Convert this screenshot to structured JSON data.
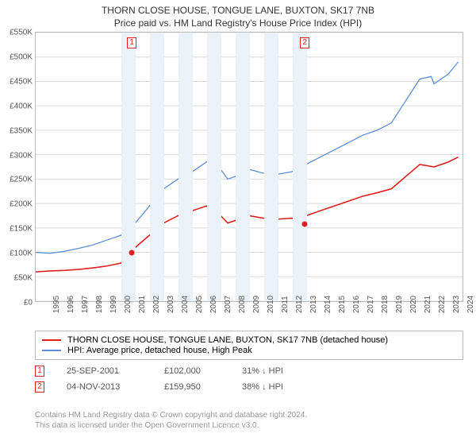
{
  "title": "THORN CLOSE HOUSE, TONGUE LANE, BUXTON, SK17 7NB",
  "subtitle": "Price paid vs. HM Land Registry's House Price Index (HPI)",
  "chart": {
    "type": "line",
    "background_color": "#ffffff",
    "border_color": "#bbbbbb",
    "grid_color": "#dddddd",
    "band_color": "#ebf1f8",
    "y": {
      "min": 0,
      "max": 550000,
      "step": 50000,
      "labels": [
        "£0",
        "£50K",
        "£100K",
        "£150K",
        "£200K",
        "£250K",
        "£300K",
        "£350K",
        "£400K",
        "£450K",
        "£500K",
        "£550K"
      ]
    },
    "x": {
      "min": 1995,
      "max": 2025,
      "labels": [
        "1995",
        "1996",
        "1997",
        "1998",
        "1999",
        "2000",
        "2001",
        "2002",
        "2003",
        "2004",
        "2005",
        "2006",
        "2007",
        "2008",
        "2009",
        "2010",
        "2011",
        "2012",
        "2013",
        "2014",
        "2015",
        "2016",
        "2017",
        "2018",
        "2019",
        "2020",
        "2021",
        "2022",
        "2023",
        "2024"
      ]
    },
    "series": [
      {
        "name": "property",
        "color": "#e02020",
        "width": 1.6,
        "points": [
          [
            1995,
            60000
          ],
          [
            1996,
            62000
          ],
          [
            1997,
            63000
          ],
          [
            1998,
            65000
          ],
          [
            1999,
            68000
          ],
          [
            2000,
            72000
          ],
          [
            2001,
            78000
          ],
          [
            2001.7,
            102000
          ],
          [
            2002,
            110000
          ],
          [
            2003,
            135000
          ],
          [
            2004,
            160000
          ],
          [
            2005,
            175000
          ],
          [
            2006,
            185000
          ],
          [
            2007,
            195000
          ],
          [
            2008,
            175000
          ],
          [
            2008.5,
            160000
          ],
          [
            2009,
            165000
          ],
          [
            2010,
            175000
          ],
          [
            2011,
            170000
          ],
          [
            2012,
            168000
          ],
          [
            2013,
            170000
          ],
          [
            2013.85,
            159950
          ],
          [
            2014,
            175000
          ],
          [
            2015,
            185000
          ],
          [
            2016,
            195000
          ],
          [
            2017,
            205000
          ],
          [
            2018,
            215000
          ],
          [
            2019,
            222000
          ],
          [
            2020,
            230000
          ],
          [
            2021,
            255000
          ],
          [
            2022,
            280000
          ],
          [
            2023,
            275000
          ],
          [
            2024,
            285000
          ],
          [
            2024.7,
            295000
          ]
        ]
      },
      {
        "name": "hpi",
        "color": "#5b8fd6",
        "width": 1.3,
        "points": [
          [
            1995,
            100000
          ],
          [
            1996,
            98000
          ],
          [
            1997,
            102000
          ],
          [
            1998,
            108000
          ],
          [
            1999,
            115000
          ],
          [
            2000,
            125000
          ],
          [
            2001,
            135000
          ],
          [
            2002,
            160000
          ],
          [
            2003,
            195000
          ],
          [
            2004,
            230000
          ],
          [
            2005,
            250000
          ],
          [
            2006,
            265000
          ],
          [
            2007,
            285000
          ],
          [
            2007.6,
            295000
          ],
          [
            2008,
            270000
          ],
          [
            2008.5,
            250000
          ],
          [
            2009,
            255000
          ],
          [
            2010,
            270000
          ],
          [
            2011,
            262000
          ],
          [
            2012,
            260000
          ],
          [
            2013,
            265000
          ],
          [
            2014,
            280000
          ],
          [
            2015,
            295000
          ],
          [
            2016,
            310000
          ],
          [
            2017,
            325000
          ],
          [
            2018,
            340000
          ],
          [
            2019,
            350000
          ],
          [
            2020,
            365000
          ],
          [
            2021,
            410000
          ],
          [
            2022,
            455000
          ],
          [
            2022.8,
            460000
          ],
          [
            2023,
            445000
          ],
          [
            2024,
            465000
          ],
          [
            2024.7,
            490000
          ]
        ]
      }
    ],
    "markers": [
      {
        "idx": "1",
        "x": 2001.73,
        "y": 102000
      },
      {
        "idx": "2",
        "x": 2013.85,
        "y": 159950
      }
    ],
    "bands": [
      [
        2001,
        2002
      ],
      [
        2003,
        2004
      ],
      [
        2005,
        2006
      ],
      [
        2007,
        2008
      ],
      [
        2009,
        2010
      ],
      [
        2011,
        2012
      ],
      [
        2013,
        2014
      ]
    ]
  },
  "legend": {
    "rows": [
      {
        "color": "#e02020",
        "label": "THORN CLOSE HOUSE, TONGUE LANE, BUXTON, SK17 7NB (detached house)"
      },
      {
        "color": "#5b8fd6",
        "label": "HPI: Average price, detached house, High Peak"
      }
    ]
  },
  "transactions": [
    {
      "idx": "1",
      "date": "25-SEP-2001",
      "price": "£102,000",
      "pct": "31% ↓ HPI"
    },
    {
      "idx": "2",
      "date": "04-NOV-2013",
      "price": "£159,950",
      "pct": "38% ↓ HPI"
    }
  ],
  "footer": {
    "line1": "Contains HM Land Registry data © Crown copyright and database right 2024.",
    "line2": "This data is licensed under the Open Government Licence v3.0."
  }
}
